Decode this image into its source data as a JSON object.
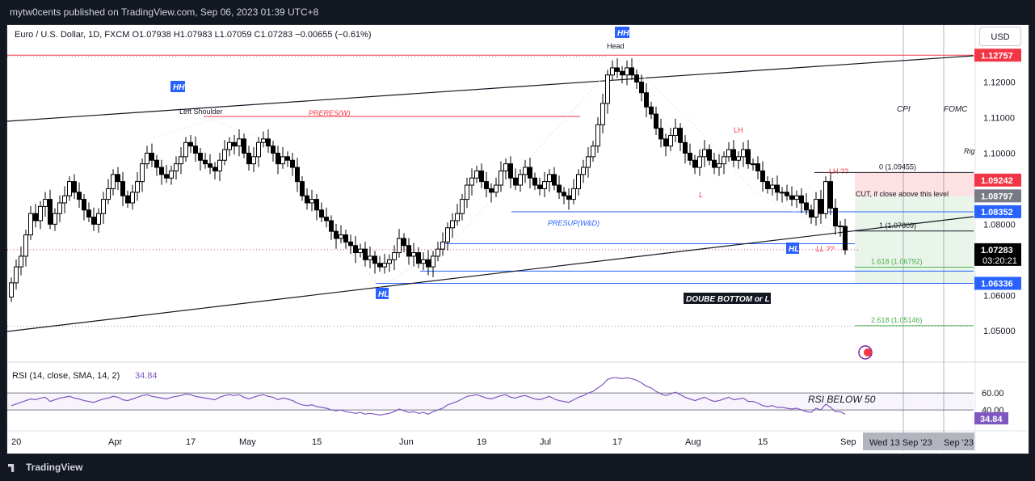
{
  "header": {
    "publish_text": "mytw0cents published on TradingView.com, Sep 06, 2023 01:39 UTC+8"
  },
  "footer": {
    "logo_text": "TradingView"
  },
  "currency_button": "USD",
  "symbol_line": "Euro / U.S. Dollar, 1D, FXCM  O1.07938  H1.07983  L1.07059  C1.07283  −0.00655 (−0.61%)",
  "colors": {
    "up": "#ffffff",
    "down": "#000000",
    "red": "#f23645",
    "blue": "#2962ff",
    "green": "#4caf50",
    "rsi": "#7e57c2"
  },
  "chart_data": {
    "type": "candlestick",
    "title": "Euro / U.S. Dollar, 1D, FXCM",
    "ohlc_summary": {
      "open": 1.07938,
      "high": 1.07983,
      "low": 1.07059,
      "close": 1.07283,
      "change": "−0.00655 (−0.61%)"
    },
    "ylim": [
      1.043,
      1.134
    ],
    "y_ticks": [
      {
        "value": 1.12,
        "label": "1.12000"
      },
      {
        "value": 1.11,
        "label": "1.11000"
      },
      {
        "value": 1.1,
        "label": "1.10000"
      },
      {
        "value": 1.08,
        "label": "1.08000"
      },
      {
        "value": 1.06,
        "label": "1.06000"
      },
      {
        "value": 1.05,
        "label": "1.05000"
      }
    ],
    "x_ticks": [
      {
        "index": 1,
        "label": "20"
      },
      {
        "index": 21,
        "label": "Apr"
      },
      {
        "index": 37,
        "label": "17"
      },
      {
        "index": 48,
        "label": "May"
      },
      {
        "index": 63,
        "label": "15"
      },
      {
        "index": 81,
        "label": "Jun"
      },
      {
        "index": 97,
        "label": "19"
      },
      {
        "index": 110,
        "label": "Jul"
      },
      {
        "index": 125,
        "label": "17"
      },
      {
        "index": 140,
        "label": "Aug"
      },
      {
        "index": 155,
        "label": "15"
      },
      {
        "index": 172,
        "label": "Sep"
      }
    ],
    "x_range_extra": [
      "Wed 13 Sep '23",
      "Sep '23"
    ],
    "closes": [
      1.0635,
      1.068,
      1.071,
      1.077,
      1.083,
      1.081,
      1.085,
      1.087,
      1.08,
      1.083,
      1.086,
      1.088,
      1.092,
      1.089,
      1.087,
      1.084,
      1.082,
      1.08,
      1.083,
      1.087,
      1.09,
      1.094,
      1.092,
      1.088,
      1.086,
      1.089,
      1.092,
      1.097,
      1.1,
      1.098,
      1.096,
      1.094,
      1.093,
      1.095,
      1.097,
      1.099,
      1.103,
      1.102,
      1.1,
      1.098,
      1.097,
      1.096,
      1.095,
      1.098,
      1.101,
      1.103,
      1.102,
      1.104,
      1.1,
      1.097,
      1.099,
      1.103,
      1.104,
      1.102,
      1.1,
      1.097,
      1.099,
      1.098,
      1.096,
      1.092,
      1.088,
      1.086,
      1.087,
      1.084,
      1.082,
      1.081,
      1.078,
      1.076,
      1.077,
      1.075,
      1.074,
      1.072,
      1.073,
      1.07,
      1.071,
      1.069,
      1.068,
      1.069,
      1.07,
      1.072,
      1.076,
      1.074,
      1.071,
      1.072,
      1.069,
      1.07,
      1.068,
      1.071,
      1.073,
      1.075,
      1.079,
      1.081,
      1.083,
      1.087,
      1.091,
      1.093,
      1.095,
      1.092,
      1.09,
      1.089,
      1.091,
      1.095,
      1.097,
      1.093,
      1.091,
      1.094,
      1.096,
      1.093,
      1.091,
      1.09,
      1.092,
      1.094,
      1.091,
      1.089,
      1.088,
      1.087,
      1.09,
      1.094,
      1.096,
      1.099,
      1.102,
      1.108,
      1.114,
      1.122,
      1.124,
      1.123,
      1.122,
      1.124,
      1.122,
      1.12,
      1.117,
      1.113,
      1.111,
      1.107,
      1.104,
      1.102,
      1.105,
      1.107,
      1.103,
      1.1,
      1.098,
      1.096,
      1.099,
      1.101,
      1.098,
      1.096,
      1.097,
      1.099,
      1.101,
      1.098,
      1.099,
      1.101,
      1.097,
      1.097,
      1.095,
      1.092,
      1.09,
      1.091,
      1.089,
      1.089,
      1.088,
      1.087,
      1.088,
      1.086,
      1.084,
      1.082,
      1.087,
      1.083,
      1.092,
      1.0845,
      1.0795,
      1.0794,
      1.0728
    ],
    "rsi": {
      "label": "RSI (14, close, SMA, 14, 2)",
      "value_label": "34.84",
      "bands": [
        {
          "value": 60,
          "label": "60.00"
        },
        {
          "value": 40,
          "label": "40.00"
        }
      ],
      "values": [
        45,
        47,
        49,
        51,
        53,
        52,
        54,
        55,
        50,
        52,
        54,
        55,
        56,
        54,
        53,
        51,
        50,
        49,
        51,
        53,
        54,
        56,
        55,
        52,
        51,
        53,
        55,
        57,
        58,
        56,
        55,
        54,
        53,
        55,
        56,
        57,
        59,
        58,
        56,
        55,
        54,
        53,
        52,
        55,
        57,
        58,
        57,
        58,
        55,
        53,
        55,
        57,
        58,
        56,
        55,
        52,
        54,
        53,
        51,
        48,
        46,
        45,
        46,
        44,
        43,
        42,
        40,
        39,
        40,
        38,
        37,
        36,
        37,
        35,
        36,
        35,
        34,
        35,
        36,
        38,
        41,
        39,
        37,
        38,
        36,
        37,
        35,
        38,
        40,
        42,
        46,
        48,
        50,
        53,
        56,
        57,
        58,
        56,
        54,
        53,
        55,
        57,
        58,
        55,
        54,
        56,
        57,
        55,
        53,
        52,
        54,
        56,
        53,
        51,
        50,
        49,
        52,
        55,
        57,
        60,
        62,
        66,
        70,
        76,
        78,
        78,
        77,
        78,
        77,
        75,
        72,
        68,
        66,
        62,
        59,
        57,
        59,
        61,
        58,
        55,
        53,
        51,
        53,
        55,
        52,
        50,
        51,
        53,
        55,
        52,
        53,
        54,
        50,
        50,
        48,
        45,
        44,
        45,
        43,
        43,
        42,
        41,
        42,
        40,
        38,
        37,
        42,
        40,
        47,
        43,
        38,
        38,
        35
      ]
    },
    "price_labels": [
      {
        "value": 1.12757,
        "label": "1.12757",
        "color": "#f23645"
      },
      {
        "value": 1.09242,
        "label": "1.09242",
        "color": "#f23645"
      },
      {
        "value": 1.08797,
        "label": "1.08797",
        "color": "#787b86"
      },
      {
        "value": 1.08352,
        "label": "1.08352",
        "color": "#2962ff"
      },
      {
        "value": 1.07283,
        "label": "1.07283",
        "color": "#000000",
        "countdown": "03:20:21"
      },
      {
        "value": 1.06336,
        "label": "1.06336",
        "color": "#2962ff"
      }
    ],
    "fib_labels": [
      {
        "value": 1.09455,
        "label": "0 (1.09455)"
      },
      {
        "value": 1.07809,
        "label": "1 (1.07809)"
      },
      {
        "value": 1.06792,
        "label": "1.618 (1.06792)"
      },
      {
        "value": 1.05146,
        "label": "2.618 (1.05146)"
      }
    ],
    "annotations": {
      "head": "Head",
      "hh_top": "HH",
      "hh_left": "HH",
      "left_shoulder": "Left Shoulder",
      "preres": "PRERES(W)",
      "presup": "PRESUP(W&D)",
      "lh": "LH",
      "lh_q": "LH ??",
      "l": "L",
      "ll_q": "LL ??",
      "hl_right": "HL",
      "hl_bottom": "HL",
      "cut": "CUT, if close above this level",
      "double_bottom": "DOUBE BOTTOM or L?",
      "cpi": "CPI",
      "fomc": "FOMC",
      "rig": "Rig",
      "rsi_note": "RSI BELOW 50"
    }
  }
}
